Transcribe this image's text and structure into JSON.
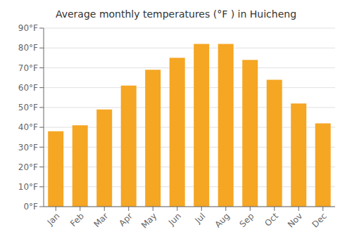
{
  "chart_data": {
    "type": "bar",
    "title": "Average monthly temperatures (°F ) in Huicheng",
    "categories": [
      "Jan",
      "Feb",
      "Mar",
      "Apr",
      "May",
      "Jun",
      "Jul",
      "Aug",
      "Sep",
      "Oct",
      "Nov",
      "Dec"
    ],
    "values": [
      38,
      41,
      49,
      61,
      69,
      75,
      82,
      82,
      74,
      64,
      52,
      42
    ],
    "color": "#F5A623",
    "ylim": [
      0,
      90
    ],
    "yticks": [
      {
        "value": 0,
        "label": "0°F"
      },
      {
        "value": 10,
        "label": "10°F"
      },
      {
        "value": 20,
        "label": "20°F"
      },
      {
        "value": 30,
        "label": "30°F"
      },
      {
        "value": 40,
        "label": "40°F"
      },
      {
        "value": 50,
        "label": "50°F"
      },
      {
        "value": 60,
        "label": "60°F"
      },
      {
        "value": 70,
        "label": "70°F"
      },
      {
        "value": 80,
        "label": "80°F"
      },
      {
        "value": 90,
        "label": "90°F"
      }
    ],
    "grid": true
  }
}
